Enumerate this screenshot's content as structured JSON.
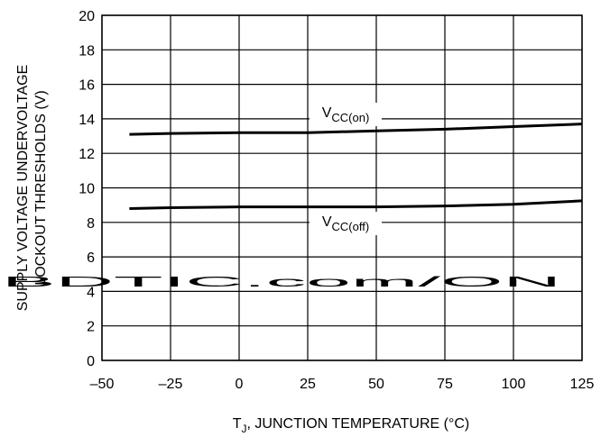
{
  "chart_data": {
    "type": "line",
    "xlabel": {
      "main": "T",
      "sub": "J",
      "rest": ", JUNCTION TEMPERATURE (°C)"
    },
    "ylabel": [
      "SUPPLY VOLTAGE UNDERVOLTAGE",
      "LOCKOUT THRESHOLDS (V)"
    ],
    "x": [
      -40,
      -25,
      0,
      25,
      50,
      75,
      100,
      125
    ],
    "series": [
      {
        "name": "VCC(on)",
        "color": "#000000",
        "values": [
          13.1,
          13.15,
          13.2,
          13.2,
          13.3,
          13.4,
          13.55,
          13.7
        ]
      },
      {
        "name": "VCC(off)",
        "color": "#000000",
        "values": [
          8.8,
          8.85,
          8.9,
          8.9,
          8.9,
          8.95,
          9.05,
          9.25
        ]
      }
    ],
    "xlim": [
      -50,
      125
    ],
    "xticks": [
      {
        "value": -50,
        "label": "–50"
      },
      {
        "value": -25,
        "label": "–25"
      },
      0,
      25,
      50,
      75,
      100,
      125
    ],
    "ylim": [
      0,
      20
    ],
    "yticks": [
      0,
      2,
      4,
      6,
      8,
      10,
      12,
      14,
      16,
      18,
      20
    ],
    "grid": true,
    "watermark": "BDTIC.com/ON"
  }
}
